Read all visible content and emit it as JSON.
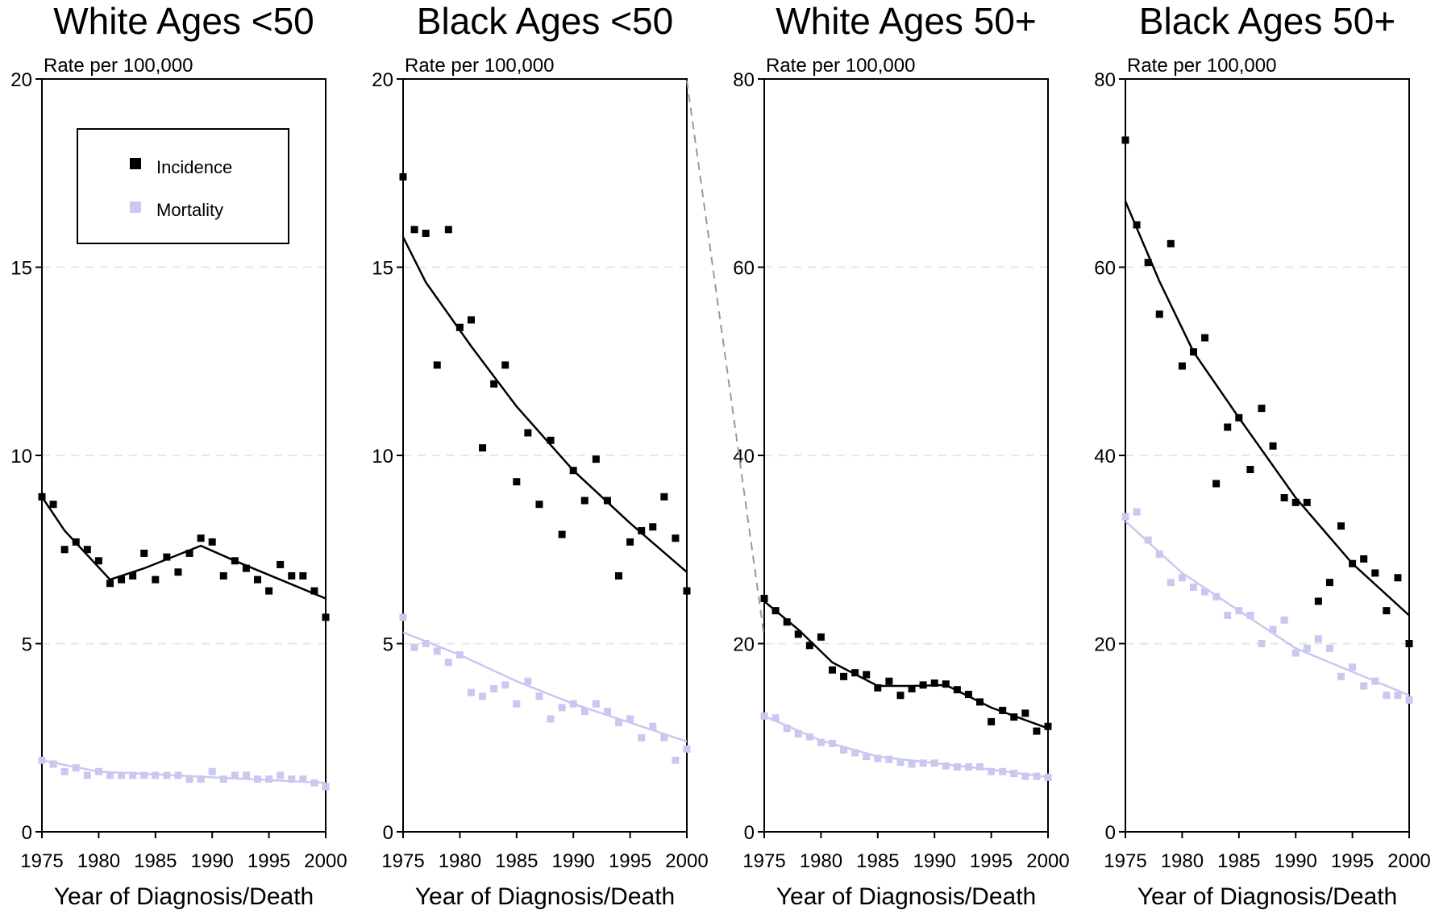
{
  "colors": {
    "incidence": "#000000",
    "mortality": "#c8c8f0",
    "grid": "#e6e6e6",
    "axis": "#000000"
  },
  "legend": {
    "placement": "top-left inside first panel",
    "items": [
      "Incidence",
      "Mortality"
    ]
  },
  "chart_data": [
    {
      "type": "scatter",
      "title": "White Ages <50",
      "ylabel": "Rate per 100,000",
      "xlabel": "Year of Diagnosis/Death",
      "xlim": [
        1975,
        2000
      ],
      "ylim": [
        0,
        20
      ],
      "xticks": [
        "1975",
        "1980",
        "1985",
        "1990",
        "1995",
        "2000"
      ],
      "yticks": [
        "0",
        "5",
        "10",
        "15",
        "20"
      ],
      "grid": "horizontal dashed",
      "x": [
        1975,
        1976,
        1977,
        1978,
        1979,
        1980,
        1981,
        1982,
        1983,
        1984,
        1985,
        1986,
        1987,
        1988,
        1989,
        1990,
        1991,
        1992,
        1993,
        1994,
        1995,
        1996,
        1997,
        1998,
        1999,
        2000
      ],
      "series": [
        {
          "name": "Incidence",
          "values": [
            8.9,
            8.7,
            7.5,
            7.7,
            7.5,
            7.2,
            6.6,
            6.7,
            6.8,
            7.4,
            6.7,
            7.3,
            6.9,
            7.4,
            7.8,
            7.7,
            6.8,
            7.2,
            7.0,
            6.7,
            6.4,
            7.1,
            6.8,
            6.8,
            6.4,
            5.7
          ],
          "trend": [
            [
              1975,
              8.9
            ],
            [
              1977,
              8.0
            ],
            [
              1981,
              6.7
            ],
            [
              1984,
              7.0
            ],
            [
              1989,
              7.6
            ],
            [
              1992,
              7.2
            ],
            [
              2000,
              6.2
            ]
          ]
        },
        {
          "name": "Mortality",
          "values": [
            1.9,
            1.8,
            1.6,
            1.7,
            1.5,
            1.6,
            1.5,
            1.5,
            1.5,
            1.5,
            1.5,
            1.5,
            1.5,
            1.4,
            1.4,
            1.6,
            1.4,
            1.5,
            1.5,
            1.4,
            1.4,
            1.5,
            1.4,
            1.4,
            1.3,
            1.2
          ],
          "trend": [
            [
              1975,
              1.9
            ],
            [
              1980,
              1.6
            ],
            [
              2000,
              1.3
            ]
          ]
        }
      ]
    },
    {
      "type": "scatter",
      "title": "Black Ages <50",
      "ylabel": "Rate per 100,000",
      "xlabel": "Year of Diagnosis/Death",
      "xlim": [
        1975,
        2000
      ],
      "ylim": [
        0,
        20
      ],
      "xticks": [
        "1975",
        "1980",
        "1985",
        "1990",
        "1995",
        "2000"
      ],
      "yticks": [
        "0",
        "5",
        "10",
        "15",
        "20"
      ],
      "grid": "horizontal dashed",
      "x": [
        1975,
        1976,
        1977,
        1978,
        1979,
        1980,
        1981,
        1982,
        1983,
        1984,
        1985,
        1986,
        1987,
        1988,
        1989,
        1990,
        1991,
        1992,
        1993,
        1994,
        1995,
        1996,
        1997,
        1998,
        1999,
        2000
      ],
      "series": [
        {
          "name": "Incidence",
          "values": [
            17.4,
            16.0,
            15.9,
            12.4,
            16.0,
            13.4,
            13.6,
            10.2,
            11.9,
            12.4,
            9.3,
            10.6,
            8.7,
            10.4,
            7.9,
            9.6,
            8.8,
            9.9,
            8.8,
            6.8,
            7.7,
            8.0,
            8.1,
            8.9,
            7.8,
            6.4
          ],
          "trend": [
            [
              1975,
              15.8
            ],
            [
              1977,
              14.6
            ],
            [
              1981,
              12.9
            ],
            [
              1985,
              11.3
            ],
            [
              1990,
              9.6
            ],
            [
              1995,
              8.2
            ],
            [
              2000,
              6.9
            ]
          ]
        },
        {
          "name": "Mortality",
          "values": [
            5.7,
            4.9,
            5.0,
            4.8,
            4.5,
            4.7,
            3.7,
            3.6,
            3.8,
            3.9,
            3.4,
            4.0,
            3.6,
            3.0,
            3.3,
            3.4,
            3.2,
            3.4,
            3.2,
            2.9,
            3.0,
            2.5,
            2.8,
            2.5,
            1.9,
            2.2
          ],
          "trend": [
            [
              1975,
              5.3
            ],
            [
              1980,
              4.7
            ],
            [
              1985,
              4.0
            ],
            [
              1990,
              3.4
            ],
            [
              1995,
              2.9
            ],
            [
              2000,
              2.4
            ]
          ]
        }
      ]
    },
    {
      "type": "scatter",
      "title": "White Ages 50+",
      "ylabel": "Rate per 100,000",
      "xlabel": "Year of Diagnosis/Death",
      "xlim": [
        1975,
        2000
      ],
      "ylim": [
        0,
        80
      ],
      "xticks": [
        "1975",
        "1980",
        "1985",
        "1990",
        "1995",
        "2000"
      ],
      "yticks": [
        "0",
        "20",
        "40",
        "60",
        "80"
      ],
      "grid": "horizontal dashed",
      "x": [
        1975,
        1976,
        1977,
        1978,
        1979,
        1980,
        1981,
        1982,
        1983,
        1984,
        1985,
        1986,
        1987,
        1988,
        1989,
        1990,
        1991,
        1992,
        1993,
        1994,
        1995,
        1996,
        1997,
        1998,
        1999,
        2000
      ],
      "series": [
        {
          "name": "Incidence",
          "values": [
            24.8,
            23.5,
            22.3,
            21.0,
            19.8,
            20.7,
            17.2,
            16.5,
            16.9,
            16.7,
            15.3,
            16.0,
            14.5,
            15.2,
            15.6,
            15.8,
            15.7,
            15.1,
            14.6,
            13.8,
            11.7,
            12.9,
            12.2,
            12.6,
            10.7,
            11.2
          ],
          "trend": [
            [
              1975,
              24.5
            ],
            [
              1978,
              21.5
            ],
            [
              1981,
              18.0
            ],
            [
              1985,
              15.5
            ],
            [
              1988,
              15.5
            ],
            [
              1991,
              15.6
            ],
            [
              1995,
              13.2
            ],
            [
              2000,
              11.0
            ]
          ]
        },
        {
          "name": "Mortality",
          "values": [
            12.3,
            12.1,
            11.0,
            10.4,
            10.1,
            9.5,
            9.4,
            8.7,
            8.4,
            8.0,
            7.8,
            7.7,
            7.4,
            7.2,
            7.3,
            7.3,
            7.0,
            6.9,
            6.9,
            6.9,
            6.4,
            6.4,
            6.2,
            5.9,
            5.9,
            5.8
          ],
          "trend": [
            [
              1975,
              12.3
            ],
            [
              1980,
              9.7
            ],
            [
              1985,
              8.0
            ],
            [
              1990,
              7.3
            ],
            [
              1995,
              6.6
            ],
            [
              2000,
              5.8
            ]
          ]
        }
      ]
    },
    {
      "type": "scatter",
      "title": "Black Ages 50+",
      "ylabel": "Rate per 100,000",
      "xlabel": "Year of Diagnosis/Death",
      "xlim": [
        1975,
        2000
      ],
      "ylim": [
        0,
        80
      ],
      "xticks": [
        "1975",
        "1980",
        "1985",
        "1990",
        "1995",
        "2000"
      ],
      "yticks": [
        "0",
        "20",
        "40",
        "60",
        "80"
      ],
      "grid": "horizontal dashed",
      "x": [
        1975,
        1976,
        1977,
        1978,
        1979,
        1980,
        1981,
        1982,
        1983,
        1984,
        1985,
        1986,
        1987,
        1988,
        1989,
        1990,
        1991,
        1992,
        1993,
        1994,
        1995,
        1996,
        1997,
        1998,
        1999,
        2000
      ],
      "series": [
        {
          "name": "Incidence",
          "values": [
            73.5,
            64.5,
            60.5,
            55.0,
            62.5,
            49.5,
            51.0,
            52.5,
            37.0,
            43.0,
            44.0,
            38.5,
            45.0,
            41.0,
            35.5,
            35.0,
            35.0,
            24.5,
            26.5,
            32.5,
            28.5,
            29.0,
            27.5,
            23.5,
            27.0,
            20.0
          ],
          "trend": [
            [
              1975,
              67.0
            ],
            [
              1978,
              58.5
            ],
            [
              1981,
              51.0
            ],
            [
              1985,
              44.0
            ],
            [
              1990,
              35.5
            ],
            [
              1995,
              28.5
            ],
            [
              2000,
              23.0
            ]
          ]
        },
        {
          "name": "Mortality",
          "values": [
            33.5,
            34.0,
            31.0,
            29.5,
            26.5,
            27.0,
            26.0,
            25.5,
            25.0,
            23.0,
            23.5,
            23.0,
            20.0,
            21.5,
            22.5,
            19.0,
            19.5,
            20.5,
            19.5,
            16.5,
            17.5,
            15.5,
            16.0,
            14.5,
            14.5,
            14.0
          ],
          "trend": [
            [
              1975,
              33.0
            ],
            [
              1980,
              27.5
            ],
            [
              1985,
              23.5
            ],
            [
              1990,
              19.5
            ],
            [
              1995,
              17.0
            ],
            [
              2000,
              14.5
            ]
          ]
        }
      ]
    }
  ]
}
